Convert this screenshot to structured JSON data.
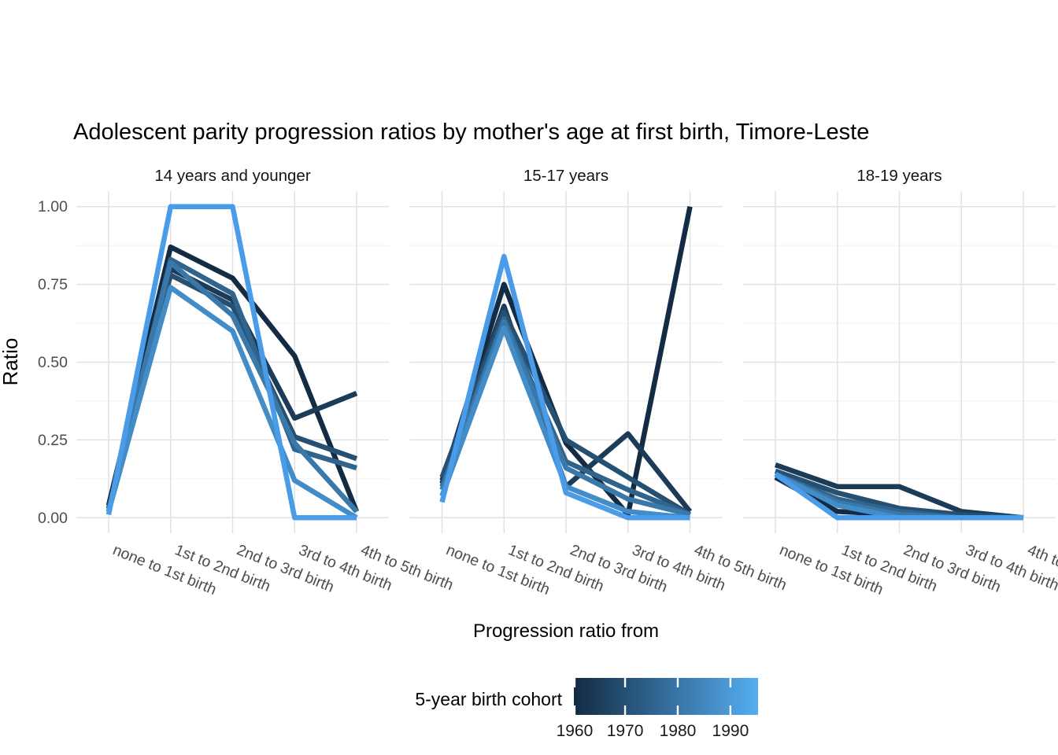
{
  "title": "Adolescent parity progression ratios by mother's age at first birth,  Timore-Leste",
  "y_axis": {
    "title": "Ratio",
    "tick_labels": [
      "1.00",
      "0.75",
      "0.50",
      "0.25",
      "0.00"
    ],
    "tick_values": [
      1.0,
      0.75,
      0.5,
      0.25,
      0.0
    ]
  },
  "x_axis": {
    "title": "Progression ratio from"
  },
  "legend": {
    "title": "5-year birth cohort",
    "tick_labels": [
      "1960",
      "1970",
      "1980",
      "1990"
    ],
    "gradient_low": "#132B43",
    "gradient_high": "#55AEF3"
  },
  "chart_data": {
    "type": "line",
    "x_categories": [
      "none to 1st birth",
      "1st to 2nd birth",
      "2nd to 3rd birth",
      "3rd to 4th birth",
      "4th to 5th birth"
    ],
    "ylim": [
      0,
      1
    ],
    "grid": true,
    "legend_position": "bottom",
    "color_scale": "continuous dark navy (1960) to light blue (1990+)",
    "facets": [
      {
        "label": "14 years and younger",
        "series": [
          {
            "name": "1960",
            "color": "#132B43",
            "values": [
              0.04,
              0.87,
              0.77,
              0.52,
              0.02
            ]
          },
          {
            "name": "1965",
            "color": "#1C3B57",
            "values": [
              0.03,
              0.8,
              0.7,
              0.32,
              0.4
            ]
          },
          {
            "name": "1970",
            "color": "#265071",
            "values": [
              0.03,
              0.78,
              0.68,
              0.26,
              0.19
            ]
          },
          {
            "name": "1975",
            "color": "#30648D",
            "values": [
              0.02,
              0.83,
              0.72,
              0.22,
              0.16
            ]
          },
          {
            "name": "1980",
            "color": "#3A78A9",
            "values": [
              0.02,
              0.82,
              0.65,
              0.24,
              0.02
            ]
          },
          {
            "name": "1985",
            "color": "#428CC8",
            "values": [
              0.02,
              0.74,
              0.6,
              0.12,
              0.0
            ]
          },
          {
            "name": "1990",
            "color": "#4A9CE8",
            "values": [
              0.01,
              1.0,
              1.0,
              0.0,
              0.0
            ]
          }
        ]
      },
      {
        "label": "15-17 years",
        "series": [
          {
            "name": "1960",
            "color": "#132B43",
            "values": [
              0.11,
              0.75,
              0.24,
              0.01,
              1.0
            ]
          },
          {
            "name": "1965",
            "color": "#1C3B57",
            "values": [
              0.12,
              0.68,
              0.1,
              0.27,
              0.02
            ]
          },
          {
            "name": "1970",
            "color": "#265071",
            "values": [
              0.13,
              0.66,
              0.25,
              0.13,
              0.01
            ]
          },
          {
            "name": "1975",
            "color": "#30648D",
            "values": [
              0.1,
              0.64,
              0.18,
              0.09,
              0.01
            ]
          },
          {
            "name": "1980",
            "color": "#3A78A9",
            "values": [
              0.09,
              0.63,
              0.16,
              0.06,
              0.01
            ]
          },
          {
            "name": "1985",
            "color": "#428CC8",
            "values": [
              0.07,
              0.61,
              0.1,
              0.02,
              0.0
            ]
          },
          {
            "name": "1990",
            "color": "#4A9CE8",
            "values": [
              0.05,
              0.84,
              0.08,
              0.0,
              0.0
            ]
          }
        ]
      },
      {
        "label": "18-19 years",
        "series": [
          {
            "name": "1960",
            "color": "#132B43",
            "values": [
              0.13,
              0.02,
              0.01,
              0.0,
              0.0
            ]
          },
          {
            "name": "1965",
            "color": "#1C3B57",
            "values": [
              0.17,
              0.1,
              0.1,
              0.02,
              0.0
            ]
          },
          {
            "name": "1970",
            "color": "#265071",
            "values": [
              0.15,
              0.08,
              0.03,
              0.01,
              0.0
            ]
          },
          {
            "name": "1975",
            "color": "#30648D",
            "values": [
              0.14,
              0.06,
              0.02,
              0.0,
              0.0
            ]
          },
          {
            "name": "1980",
            "color": "#3A78A9",
            "values": [
              0.14,
              0.05,
              0.01,
              0.0,
              0.0
            ]
          },
          {
            "name": "1985",
            "color": "#428CC8",
            "values": [
              0.14,
              0.04,
              0.0,
              0.0,
              0.0
            ]
          },
          {
            "name": "1990",
            "color": "#4A9CE8",
            "values": [
              0.14,
              0.0,
              0.0,
              0.0,
              0.0
            ]
          }
        ]
      }
    ]
  }
}
